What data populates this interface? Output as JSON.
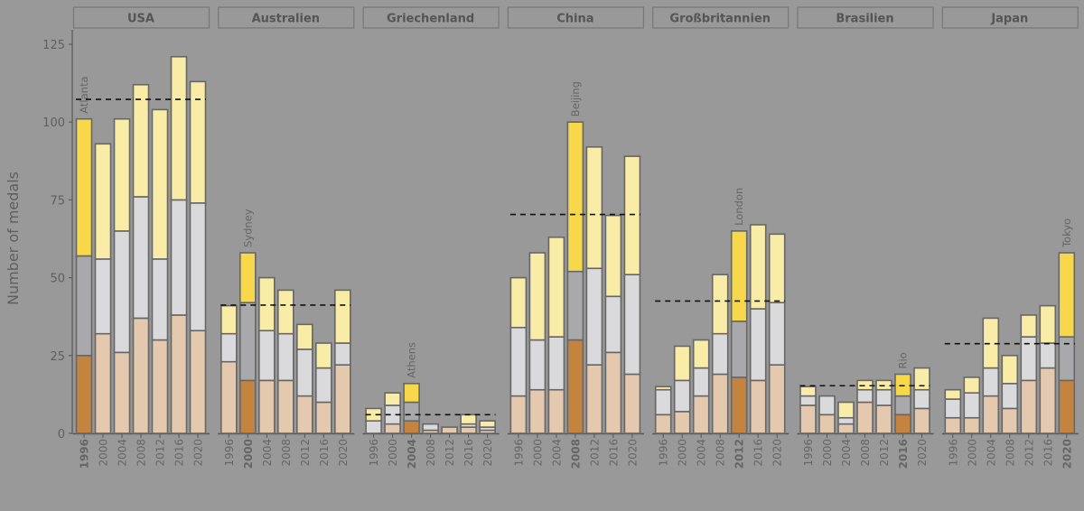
{
  "chart_data": {
    "type": "bar",
    "stacked": true,
    "title": "",
    "ylabel": "Number of medals",
    "xlabel": "",
    "ylim": [
      0,
      130
    ],
    "yticks": [
      0,
      25,
      50,
      75,
      100,
      125
    ],
    "categories": [
      "1996",
      "2000",
      "2004",
      "2008",
      "2012",
      "2016",
      "2020"
    ],
    "stack_order": [
      "bronze",
      "silver",
      "gold"
    ],
    "colors": {
      "host": {
        "gold": "#f7d84a",
        "silver": "#a9a9ac",
        "bronze": "#c4843f"
      },
      "other": {
        "gold": "#f8eca6",
        "silver": "#dadadc",
        "bronze": "#e4c9ae"
      },
      "reference_line": "#111111"
    },
    "panels": [
      {
        "name": "USA",
        "host_year": "1996",
        "host_city": "Atlanta",
        "reference": 107.3,
        "gold": [
          44,
          37,
          36,
          36,
          48,
          46,
          39
        ],
        "silver": [
          32,
          24,
          39,
          39,
          26,
          37,
          41
        ],
        "bronze": [
          25,
          32,
          26,
          37,
          30,
          38,
          33
        ]
      },
      {
        "name": "Australien",
        "host_year": "2000",
        "host_city": "Sydney",
        "reference": 41.2,
        "gold": [
          9,
          16,
          17,
          14,
          8,
          8,
          17
        ],
        "silver": [
          9,
          25,
          16,
          15,
          15,
          11,
          7
        ],
        "bronze": [
          23,
          17,
          17,
          17,
          12,
          10,
          22
        ]
      },
      {
        "name": "Griechenland",
        "host_year": "2004",
        "host_city": "Athens",
        "reference": 6.0,
        "gold": [
          4,
          4,
          6,
          0,
          0,
          3,
          2
        ],
        "silver": [
          4,
          6,
          6,
          2,
          0,
          1,
          1
        ],
        "bronze": [
          0,
          3,
          4,
          1,
          2,
          2,
          1
        ]
      },
      {
        "name": "China",
        "host_year": "2008",
        "host_city": "Beijing",
        "reference": 70.3,
        "gold": [
          16,
          28,
          32,
          48,
          39,
          26,
          38
        ],
        "silver": [
          22,
          16,
          17,
          22,
          31,
          18,
          32
        ],
        "bronze": [
          12,
          14,
          14,
          30,
          22,
          26,
          19
        ]
      },
      {
        "name": "Großbritannien",
        "host_year": "2012",
        "host_city": "London",
        "reference": 42.5,
        "gold": [
          1,
          11,
          9,
          19,
          29,
          27,
          22
        ],
        "silver": [
          8,
          10,
          9,
          13,
          18,
          23,
          20
        ],
        "bronze": [
          6,
          7,
          12,
          19,
          18,
          17,
          22
        ]
      },
      {
        "name": "Brasilien",
        "host_year": "2016",
        "host_city": "Rio",
        "reference": 15.3,
        "gold": [
          3,
          0,
          5,
          3,
          3,
          7,
          7
        ],
        "silver": [
          3,
          6,
          2,
          4,
          5,
          6,
          6
        ],
        "bronze": [
          9,
          6,
          3,
          10,
          9,
          6,
          8
        ]
      },
      {
        "name": "Japan",
        "host_year": "2020",
        "host_city": "Tokyo",
        "reference": 28.8,
        "gold": [
          3,
          5,
          16,
          9,
          7,
          12,
          27
        ],
        "silver": [
          6,
          8,
          9,
          8,
          14,
          8,
          14
        ],
        "bronze": [
          5,
          5,
          12,
          8,
          17,
          21,
          17
        ]
      }
    ]
  }
}
